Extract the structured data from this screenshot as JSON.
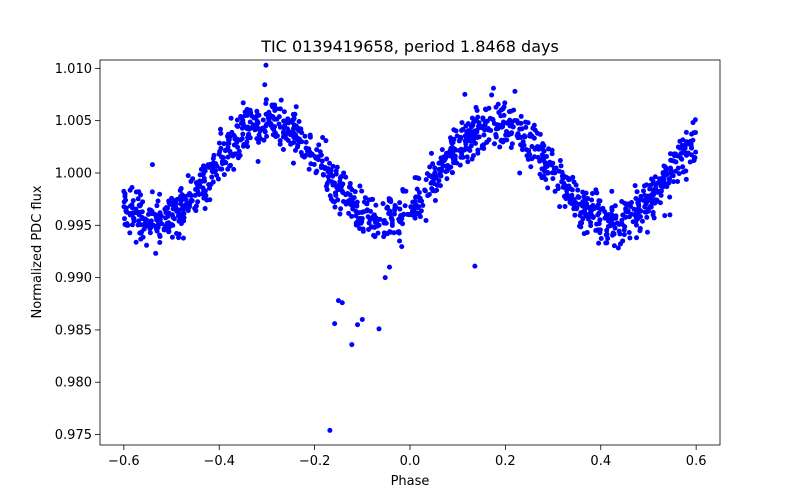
{
  "chart_data": {
    "type": "scatter",
    "title": "TIC 0139419658, period 1.8468 days",
    "xlabel": "Phase",
    "ylabel": "Normalized PDC flux",
    "xlim": [
      -0.65,
      0.65
    ],
    "ylim": [
      0.974,
      1.0108
    ],
    "xticks": [
      -0.6,
      -0.4,
      -0.2,
      0.0,
      0.2,
      0.4,
      0.6
    ],
    "xtick_labels": [
      "−0.6",
      "−0.4",
      "−0.2",
      "0.0",
      "0.2",
      "0.4",
      "0.6"
    ],
    "yticks": [
      0.975,
      0.98,
      0.985,
      0.99,
      0.995,
      1.0,
      1.005,
      1.01
    ],
    "ytick_labels": [
      "0.975",
      "0.980",
      "0.985",
      "0.990",
      "0.995",
      "1.000",
      "1.005",
      "1.010"
    ],
    "grid": false,
    "marker_color": "#0000ff",
    "series_model": {
      "phase_range": [
        -0.6,
        0.6
      ],
      "point_count": 1400,
      "mean_flux": 1.0,
      "amplitude": 0.0047,
      "max_phase": -0.295,
      "cycles_per_phase_unit": 2.083,
      "scatter_sd": 0.0011
    },
    "outliers": [
      {
        "x": -0.302,
        "y": 1.0103
      },
      {
        "x": -0.168,
        "y": 0.9754
      },
      {
        "x": -0.15,
        "y": 0.9878
      },
      {
        "x": -0.142,
        "y": 0.9876
      },
      {
        "x": -0.158,
        "y": 0.9856
      },
      {
        "x": -0.122,
        "y": 0.9836
      },
      {
        "x": -0.11,
        "y": 0.9855
      },
      {
        "x": -0.1,
        "y": 0.986
      },
      {
        "x": -0.065,
        "y": 0.9851
      },
      {
        "x": -0.052,
        "y": 0.99
      },
      {
        "x": -0.043,
        "y": 0.991
      },
      {
        "x": 0.136,
        "y": 0.9911
      },
      {
        "x": 0.175,
        "y": 1.0081
      },
      {
        "x": 0.22,
        "y": 1.0078
      },
      {
        "x": 0.23,
        "y": 1.0
      },
      {
        "x": -0.54,
        "y": 1.0008
      },
      {
        "x": 0.545,
        "y": 0.996
      }
    ]
  }
}
